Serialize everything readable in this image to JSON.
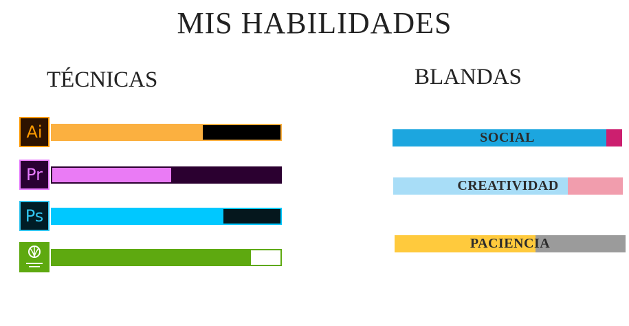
{
  "title": "MIS HABILIDADES",
  "technical": {
    "heading": "TÉCNICAS",
    "tools": [
      {
        "icon_text": "Ai",
        "icon": "illustrator-icon",
        "level": 0.66,
        "icon_bg": "#2e1300",
        "icon_fg": "#ff9a00",
        "fill": "#fbb040",
        "track": "#000000",
        "border": "#fbb040"
      },
      {
        "icon_text": "Pr",
        "icon": "premiere-icon",
        "level": 0.52,
        "icon_bg": "#2a0033",
        "icon_fg": "#e77bff",
        "fill": "#ea7bf5",
        "track": "#2b0030",
        "border": "#2b0030"
      },
      {
        "icon_text": "Ps",
        "icon": "photoshop-icon",
        "level": 0.75,
        "icon_bg": "#001c26",
        "icon_fg": "#31c5f0",
        "fill": "#00c8ff",
        "track": "#05171d",
        "border": "#00c8ff"
      },
      {
        "icon_text": "",
        "icon": "coreldraw-icon",
        "level": 0.87,
        "icon_bg": "#5ea910",
        "icon_fg": "#ffffff",
        "fill": "#5ea910",
        "track": "#ffffff",
        "border": "#5ea910"
      }
    ]
  },
  "soft": {
    "heading": "BLANDAS",
    "skills": [
      {
        "label": "SOCIAL",
        "level": 0.93,
        "fill": "#1ca6df",
        "rest": "#cc1f6f"
      },
      {
        "label": "CREATIVIDAD",
        "level": 0.76,
        "fill": "#a8ddf7",
        "rest": "#f19dad"
      },
      {
        "label": "PACIENCIA",
        "level": 0.61,
        "fill": "#ffca3d",
        "rest": "#9b9b9b"
      }
    ]
  }
}
